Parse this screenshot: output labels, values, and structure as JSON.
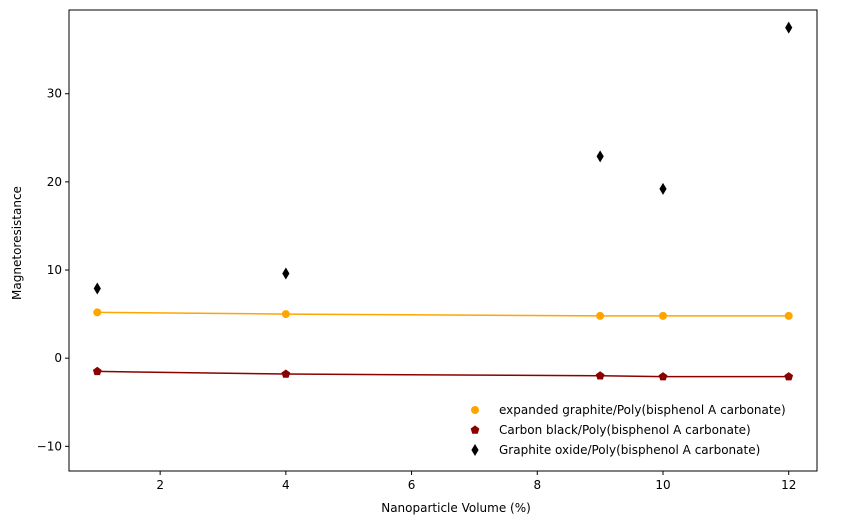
{
  "chart_data": {
    "type": "scatter",
    "title": "",
    "xlabel": "Nanoparticle Volume (%)",
    "ylabel": "Magnetoresistance",
    "xlim": [
      0.55,
      12.45
    ],
    "ylim": [
      -12.8,
      39.5
    ],
    "xticks": [
      2,
      4,
      6,
      8,
      10,
      12
    ],
    "yticks": [
      -10,
      0,
      10,
      20,
      30
    ],
    "grid": false,
    "legend_position": "lower right",
    "series": [
      {
        "name": "expanded graphite/Poly(bisphenol A carbonate)",
        "marker": "circle",
        "color": "#ffa500",
        "fit_line": true,
        "x": [
          1,
          4,
          9,
          10,
          12
        ],
        "y": [
          5.2,
          5.0,
          4.8,
          4.8,
          4.8
        ]
      },
      {
        "name": "Carbon black/Poly(bisphenol A carbonate)",
        "marker": "pentagon",
        "color": "#8b0000",
        "fit_line": true,
        "x": [
          1,
          4,
          9,
          10,
          12
        ],
        "y": [
          -1.5,
          -1.8,
          -2.0,
          -2.1,
          -2.1
        ]
      },
      {
        "name": "Graphite oxide/Poly(bisphenol A carbonate)",
        "marker": "thin_diamond",
        "color": "#000000",
        "fit_line": false,
        "x": [
          1,
          4,
          9,
          10,
          12
        ],
        "y": [
          7.9,
          9.6,
          22.9,
          19.2,
          37.5
        ]
      }
    ]
  }
}
